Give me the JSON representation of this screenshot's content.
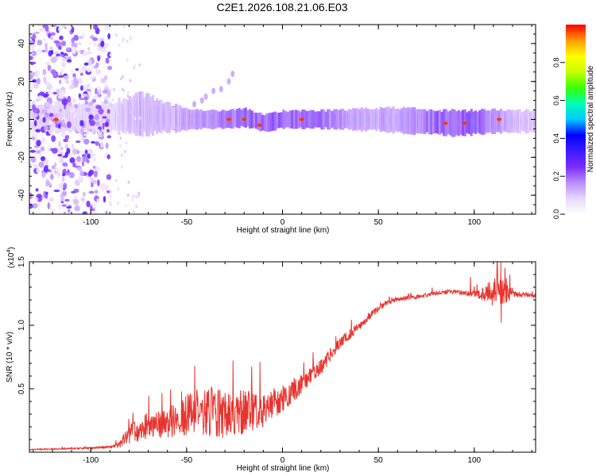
{
  "title": "C2E1.2026.108.21.06.E03",
  "colors": {
    "line": "#e8342e",
    "frame": "#000000",
    "cmap": [
      "#ffffff",
      "#e8d6ff",
      "#b98cff",
      "#7a2cff",
      "#3c1cff",
      "#0000ff",
      "#00c8ff",
      "#00ffb4",
      "#39ff00",
      "#c8ff00",
      "#ffff00",
      "#ff9a00",
      "#ff0000"
    ]
  },
  "chart_data": [
    {
      "type": "heatmap",
      "title": "C2E1.2026.108.21.06.E03",
      "xlabel": "Height of straight line (km)",
      "ylabel": "Frequency (Hz)",
      "xlim": [
        -132,
        132
      ],
      "ylim": [
        -50,
        50
      ],
      "xticks": [
        -100,
        -50,
        0,
        50,
        100
      ],
      "xtick_labels": [
        "-100",
        "-50",
        "0",
        "50",
        "100"
      ],
      "yticks": [
        -40,
        -20,
        0,
        20,
        40
      ],
      "ytick_labels": [
        "-40",
        "-20",
        "0",
        "20",
        "40"
      ],
      "noise_region_km": [
        -132,
        -90
      ],
      "signal_band": {
        "center_hz": [
          [
            -90,
            1
          ],
          [
            -75,
            3
          ],
          [
            -60,
            1
          ],
          [
            -50,
            0
          ],
          [
            -40,
            0
          ],
          [
            -30,
            0
          ],
          [
            -20,
            1
          ],
          [
            -10,
            -2
          ],
          [
            0,
            0
          ],
          [
            10,
            0
          ],
          [
            30,
            0
          ],
          [
            50,
            0
          ],
          [
            70,
            -1
          ],
          [
            90,
            -2
          ],
          [
            110,
            -1
          ],
          [
            132,
            -1
          ]
        ],
        "half_width_hz": [
          [
            -90,
            4
          ],
          [
            -75,
            6
          ],
          [
            -60,
            4
          ],
          [
            -50,
            3
          ],
          [
            -40,
            2.5
          ],
          [
            -20,
            2.5
          ],
          [
            0,
            2.5
          ],
          [
            20,
            2.5
          ],
          [
            60,
            3.5
          ],
          [
            90,
            3.5
          ],
          [
            132,
            3
          ]
        ],
        "peak_amplitude": [
          [
            -90,
            0.35
          ],
          [
            -75,
            0.55
          ],
          [
            -60,
            0.5
          ],
          [
            -50,
            0.65
          ],
          [
            -30,
            0.8
          ],
          [
            -20,
            0.9
          ],
          [
            0,
            0.9
          ],
          [
            20,
            0.85
          ],
          [
            40,
            0.6
          ],
          [
            60,
            0.6
          ],
          [
            80,
            0.9
          ],
          [
            100,
            0.95
          ],
          [
            120,
            0.5
          ],
          [
            132,
            0.45
          ]
        ]
      },
      "hot_spots": [
        {
          "x": -28,
          "y": 0
        },
        {
          "x": -20,
          "y": 0
        },
        {
          "x": -12,
          "y": -3
        },
        {
          "x": 10,
          "y": 0
        },
        {
          "x": 85,
          "y": -2
        },
        {
          "x": 95,
          "y": -2
        },
        {
          "x": 113,
          "y": 0
        },
        {
          "x": -118,
          "y": 0
        }
      ],
      "streak_points": [
        {
          "x": -40,
          "y": 12
        },
        {
          "x": -36,
          "y": 15
        },
        {
          "x": -32,
          "y": 16
        },
        {
          "x": -28,
          "y": 20
        },
        {
          "x": -26,
          "y": 24
        },
        {
          "x": -46,
          "y": 8
        },
        {
          "x": -42,
          "y": 10
        }
      ]
    },
    {
      "type": "colorbar",
      "label": "Normalized spectral amplitude",
      "range": [
        0,
        1
      ],
      "ticks": [
        0,
        0.2,
        0.4,
        0.6,
        0.8
      ],
      "tick_labels": [
        "0.0",
        "0.2",
        "0.4",
        "0.6",
        "0.8"
      ]
    },
    {
      "type": "line",
      "xlabel": "Height of straight line (km)",
      "ylabel": "SNR (10 * v/v)",
      "exponent_label": "(x10",
      "exponent_power": "4",
      "exponent_close": ")",
      "xlim": [
        -132,
        132
      ],
      "ylim": [
        0,
        1.5
      ],
      "xticks": [
        -100,
        -50,
        0,
        50,
        100
      ],
      "xtick_labels": [
        "-100",
        "-50",
        "0",
        "50",
        "100"
      ],
      "yticks": [
        0.5,
        1.0,
        1.5
      ],
      "ytick_labels": [
        "0.5",
        "1.0",
        "1.5"
      ],
      "trend": [
        [
          -132,
          0.02
        ],
        [
          -100,
          0.03
        ],
        [
          -90,
          0.04
        ],
        [
          -85,
          0.05
        ],
        [
          -80,
          0.12
        ],
        [
          -70,
          0.18
        ],
        [
          -60,
          0.2
        ],
        [
          -50,
          0.24
        ],
        [
          -40,
          0.26
        ],
        [
          -30,
          0.25
        ],
        [
          -20,
          0.26
        ],
        [
          -10,
          0.3
        ],
        [
          0,
          0.38
        ],
        [
          10,
          0.52
        ],
        [
          20,
          0.65
        ],
        [
          30,
          0.85
        ],
        [
          40,
          0.98
        ],
        [
          45,
          1.06
        ],
        [
          50,
          1.12
        ],
        [
          55,
          1.18
        ],
        [
          60,
          1.2
        ],
        [
          70,
          1.22
        ],
        [
          80,
          1.25
        ],
        [
          90,
          1.26
        ],
        [
          100,
          1.24
        ],
        [
          110,
          1.22
        ],
        [
          120,
          1.24
        ],
        [
          132,
          1.23
        ]
      ],
      "noise_amplitude": [
        [
          -132,
          0.005
        ],
        [
          -90,
          0.01
        ],
        [
          -85,
          0.03
        ],
        [
          -80,
          0.1
        ],
        [
          -60,
          0.15
        ],
        [
          -50,
          0.22
        ],
        [
          -40,
          0.25
        ],
        [
          -30,
          0.25
        ],
        [
          -20,
          0.22
        ],
        [
          -10,
          0.18
        ],
        [
          0,
          0.14
        ],
        [
          10,
          0.1
        ],
        [
          30,
          0.06
        ],
        [
          50,
          0.03
        ],
        [
          60,
          0.02
        ],
        [
          90,
          0.02
        ],
        [
          100,
          0.03
        ],
        [
          105,
          0.08
        ],
        [
          115,
          0.2
        ],
        [
          120,
          0.03
        ],
        [
          132,
          0.02
        ]
      ],
      "spikes": [
        {
          "x": 98,
          "y": 1.38
        },
        {
          "x": 112,
          "y": 1.5
        },
        {
          "x": 114,
          "y": 1.02
        },
        {
          "x": 116,
          "y": 1.45
        }
      ]
    }
  ]
}
